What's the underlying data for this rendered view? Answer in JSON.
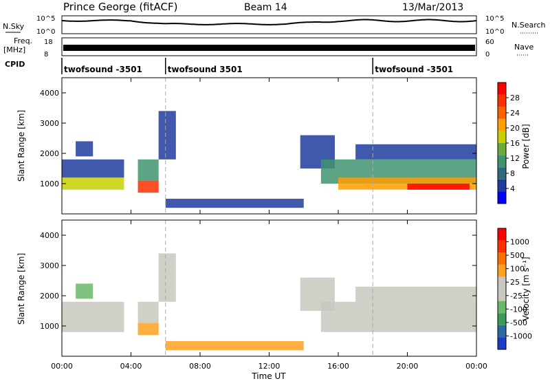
{
  "header": {
    "station": "Prince George (fitACF)",
    "beam": "Beam 14",
    "date": "13/Mar/2013"
  },
  "side_labels": {
    "nsky": "N.Sky",
    "nsearch": "N.Search",
    "freq": "Freq.",
    "freq_unit": "[MHz]",
    "nave": "Nave",
    "cpid": "CPID",
    "nsky_ticks": [
      "10^5",
      "10^0"
    ],
    "nsearch_ticks": [
      "10^5",
      "10^0"
    ],
    "freq_ticks": [
      "18",
      "8"
    ],
    "nave_ticks": [
      "60",
      "0"
    ]
  },
  "cpid_segments": [
    {
      "label": "twofsound -3501",
      "start_hour": 0
    },
    {
      "label": "twofsound 3501",
      "start_hour": 6
    },
    {
      "label": "twofsound -3501",
      "start_hour": 18
    }
  ],
  "colors": {
    "power_scale": [
      "#0000ff",
      "#1e3c9e",
      "#2f6a80",
      "#3f9470",
      "#6aac3c",
      "#c8d000",
      "#ffa000",
      "#ff6000",
      "#ff3000",
      "#ff0000"
    ],
    "velocity_scale": [
      "#1a3cc8",
      "#2a6aa0",
      "#3a9a5a",
      "#6ab86a",
      "#c8c8c0",
      "#c8c8c0",
      "#ffa020",
      "#ff7000",
      "#ff3000",
      "#ff0000"
    ]
  },
  "chart_data": [
    {
      "type": "heatmap",
      "name": "power",
      "ylabel": "Slant Range [km]",
      "ylim": [
        0,
        4500
      ],
      "yticks": [
        1000,
        2000,
        3000,
        4000
      ],
      "xlim": [
        0,
        24
      ],
      "xtick_labels": [
        "00:00",
        "04:00",
        "08:00",
        "12:00",
        "16:00",
        "20:00",
        "00:00"
      ],
      "colorbar_label": "Power [dB]",
      "colorbar_ticks": [
        "4",
        "8",
        "12",
        "16",
        "20",
        "24",
        "28"
      ],
      "bands": [
        {
          "t0": 0.0,
          "t1": 3.6,
          "r0": 800,
          "r1": 1200,
          "level": 5
        },
        {
          "t0": 0.0,
          "t1": 3.6,
          "r0": 1200,
          "r1": 1800,
          "level": 1
        },
        {
          "t0": 0.8,
          "t1": 1.8,
          "r0": 1900,
          "r1": 2400,
          "level": 1
        },
        {
          "t0": 4.4,
          "t1": 5.6,
          "r0": 700,
          "r1": 1100,
          "level": 8
        },
        {
          "t0": 4.4,
          "t1": 5.6,
          "r0": 1100,
          "r1": 1800,
          "level": 3
        },
        {
          "t0": 5.6,
          "t1": 6.6,
          "r0": 1800,
          "r1": 3400,
          "level": 1
        },
        {
          "t0": 6.0,
          "t1": 14.0,
          "r0": 200,
          "r1": 500,
          "level": 1
        },
        {
          "t0": 13.8,
          "t1": 15.8,
          "r0": 1500,
          "r1": 2600,
          "level": 1
        },
        {
          "t0": 15.0,
          "t1": 24.0,
          "r0": 1000,
          "r1": 1800,
          "level": 3
        },
        {
          "t0": 16.0,
          "t1": 24.0,
          "r0": 800,
          "r1": 1200,
          "level": 6
        },
        {
          "t0": 20.0,
          "t1": 23.6,
          "r0": 800,
          "r1": 1000,
          "level": 9
        },
        {
          "t0": 17.0,
          "t1": 24.0,
          "r0": 1800,
          "r1": 2300,
          "level": 1
        }
      ]
    },
    {
      "type": "heatmap",
      "name": "velocity",
      "ylabel": "Slant Range [km]",
      "ylim": [
        0,
        4500
      ],
      "yticks": [
        1000,
        2000,
        3000,
        4000
      ],
      "xlim": [
        0,
        24
      ],
      "xtick_labels": [
        "00:00",
        "04:00",
        "08:00",
        "12:00",
        "16:00",
        "20:00",
        "00:00"
      ],
      "xlabel": "Time UT",
      "colorbar_label": "Velocity [m s⁻¹]",
      "colorbar_ticks": [
        "1000",
        "500",
        "100",
        "25",
        "-25",
        "-100",
        "-500",
        "-1000"
      ],
      "bands": [
        {
          "t0": 0.0,
          "t1": 3.6,
          "r0": 800,
          "r1": 1800,
          "level": 4
        },
        {
          "t0": 0.8,
          "t1": 1.8,
          "r0": 1900,
          "r1": 2400,
          "level": 3
        },
        {
          "t0": 4.4,
          "t1": 5.6,
          "r0": 700,
          "r1": 1100,
          "level": 6
        },
        {
          "t0": 4.4,
          "t1": 5.6,
          "r0": 1100,
          "r1": 1800,
          "level": 4
        },
        {
          "t0": 5.6,
          "t1": 6.6,
          "r0": 1800,
          "r1": 3400,
          "level": 4
        },
        {
          "t0": 6.0,
          "t1": 14.0,
          "r0": 200,
          "r1": 500,
          "level": 6
        },
        {
          "t0": 13.8,
          "t1": 15.8,
          "r0": 1500,
          "r1": 2600,
          "level": 4
        },
        {
          "t0": 15.0,
          "t1": 24.0,
          "r0": 800,
          "r1": 1800,
          "level": 4
        },
        {
          "t0": 17.0,
          "t1": 24.0,
          "r0": 1800,
          "r1": 2300,
          "level": 4
        }
      ]
    }
  ]
}
